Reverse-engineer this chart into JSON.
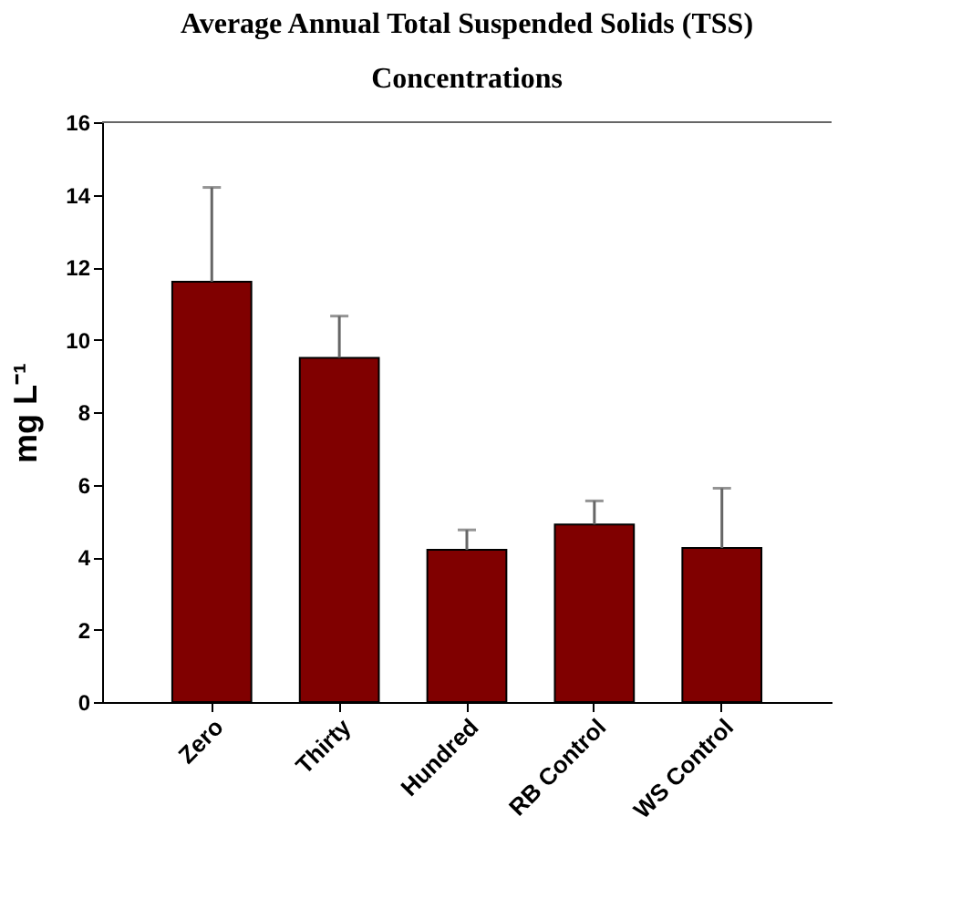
{
  "chart_data": {
    "type": "bar",
    "title": [
      "Average Annual Total Suspended Solids (TSS)",
      "Concentrations"
    ],
    "ylabel": "mg L⁻¹",
    "categories": [
      "Zero",
      "Thirty",
      "Hundred",
      "RB Control",
      "WS Control"
    ],
    "values": [
      11.6,
      9.5,
      4.2,
      4.9,
      4.25
    ],
    "errors": [
      [
        11.6,
        14.2
      ],
      [
        9.5,
        10.65
      ],
      [
        4.2,
        4.75
      ],
      [
        4.9,
        5.55
      ],
      [
        4.25,
        5.9
      ]
    ],
    "color": "#800000",
    "ylim": [
      0,
      16
    ],
    "yticks": [
      0,
      2,
      4,
      6,
      8,
      10,
      12,
      14,
      16
    ],
    "grid": false
  }
}
